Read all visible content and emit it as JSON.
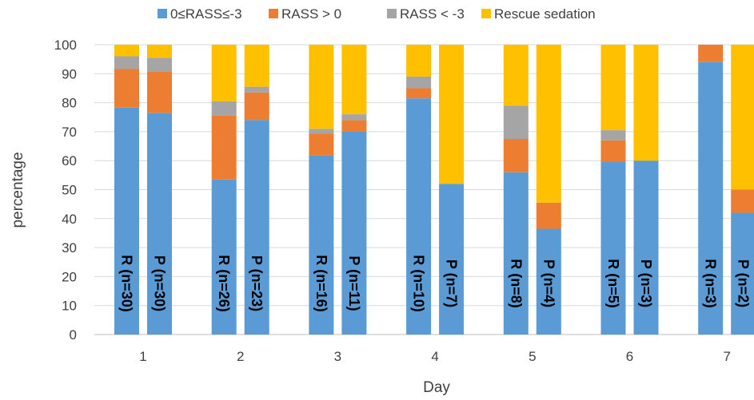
{
  "chart_data": {
    "type": "bar",
    "stacked": true,
    "xlabel": "Day",
    "ylabel": "percentage",
    "ylim": [
      0,
      100
    ],
    "yticks": [
      0,
      10,
      20,
      30,
      40,
      50,
      60,
      70,
      80,
      90,
      100
    ],
    "grid": true,
    "legend_position": "top",
    "categories": [
      "1",
      "2",
      "3",
      "4",
      "5",
      "6",
      "7"
    ],
    "series": [
      {
        "name": "0≤RASS≤-3",
        "color": "#5b9bd5"
      },
      {
        "name": "RASS > 0",
        "color": "#ed7d31"
      },
      {
        "name": "RASS < -3",
        "color": "#a5a5a5"
      },
      {
        "name": "Rescue sedation",
        "color": "#ffc000"
      }
    ],
    "bars": [
      {
        "day": "1",
        "group": "R",
        "label": "R (n=30)",
        "values": [
          78.3,
          13.3,
          4.4,
          4.0
        ]
      },
      {
        "day": "1",
        "group": "P",
        "label": "P (n=30)",
        "values": [
          76.5,
          14.3,
          4.7,
          4.5
        ]
      },
      {
        "day": "2",
        "group": "R",
        "label": "R (n=26)",
        "values": [
          53.5,
          22.0,
          5.0,
          19.5
        ]
      },
      {
        "day": "2",
        "group": "P",
        "label": "P (n=23)",
        "values": [
          74.0,
          9.5,
          2.0,
          14.5
        ]
      },
      {
        "day": "3",
        "group": "R",
        "label": "R (n=16)",
        "values": [
          61.8,
          7.5,
          1.7,
          29.0
        ]
      },
      {
        "day": "3",
        "group": "P",
        "label": "P (n=11)",
        "values": [
          70.0,
          4.0,
          2.0,
          24.0
        ]
      },
      {
        "day": "4",
        "group": "R",
        "label": "R (n=10)",
        "values": [
          81.5,
          3.5,
          4.0,
          11.0
        ]
      },
      {
        "day": "4",
        "group": "P",
        "label": "P (n=7)",
        "values": [
          52.0,
          0,
          0,
          48.0
        ]
      },
      {
        "day": "5",
        "group": "R",
        "label": "R (n=8)",
        "values": [
          56.0,
          11.5,
          11.5,
          21.0
        ]
      },
      {
        "day": "5",
        "group": "P",
        "label": "P (n=4)",
        "values": [
          36.5,
          9.0,
          0,
          54.5
        ]
      },
      {
        "day": "6",
        "group": "R",
        "label": "R (n=5)",
        "values": [
          59.5,
          7.5,
          3.5,
          29.5
        ]
      },
      {
        "day": "6",
        "group": "P",
        "label": "P (n=3)",
        "values": [
          60.0,
          0,
          0,
          40.0
        ]
      },
      {
        "day": "7",
        "group": "R",
        "label": "R (n=3)",
        "values": [
          94.0,
          6.0,
          0,
          0
        ]
      },
      {
        "day": "7",
        "group": "P",
        "label": "P (n=2)",
        "values": [
          42.0,
          8.0,
          0,
          50.0
        ]
      }
    ]
  }
}
